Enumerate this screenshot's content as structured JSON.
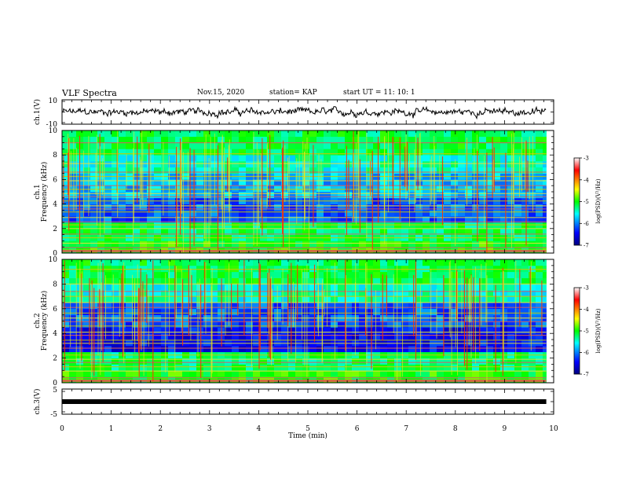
{
  "header": {
    "title": "VLF Spectra",
    "date": "Nov.15, 2020",
    "station": "station= KAP",
    "start": "start  UT =   11: 10: 1"
  },
  "chart_data": [
    {
      "type": "line",
      "name": "ch1-waveform",
      "ylabel": "ch.1(V)",
      "ylim": [
        -10,
        10
      ],
      "ytick_labels": [
        "10",
        "-10"
      ],
      "xlim": [
        0,
        10
      ]
    },
    {
      "type": "heatmap",
      "name": "ch1-spectrogram",
      "ylabel": "ch.1\nFrequency (kHz)",
      "ylabel_lines": [
        "ch.1",
        "Frequency (kHz)"
      ],
      "ylim": [
        0,
        10
      ],
      "ytick_labels": [
        "0",
        "2",
        "4",
        "6",
        "8",
        "10"
      ],
      "xlim": [
        0,
        10
      ],
      "data_end_min": 9.85,
      "horizontal_lines_khz": [
        0.25,
        0.45,
        0.8,
        1.25,
        1.55,
        2.0,
        2.3,
        2.55,
        2.9,
        3.35,
        3.6,
        3.85,
        4.25,
        4.6,
        4.85,
        5.2,
        5.5,
        5.9,
        6.25,
        6.6,
        7.3,
        8.1,
        9.0
      ],
      "colorbar": {
        "label": "log(PSD)(V²/Hz)",
        "range": [
          -7,
          -3
        ],
        "tick_labels": [
          "-3",
          "-4",
          "-5",
          "-6",
          "-7"
        ]
      }
    },
    {
      "type": "heatmap",
      "name": "ch2-spectrogram",
      "ylabel": "ch.2\nFrequency (kHz)",
      "ylabel_lines": [
        "ch.2",
        "Frequency (kHz)"
      ],
      "ylim": [
        0,
        10
      ],
      "ytick_labels": [
        "0",
        "2",
        "4",
        "6",
        "8",
        "10"
      ],
      "xlim": [
        0,
        10
      ],
      "data_end_min": 9.85,
      "horizontal_lines_khz": [
        0.2,
        0.4,
        0.95,
        1.3,
        1.65,
        1.9,
        2.25,
        2.8,
        3.2,
        3.45,
        3.85,
        4.1,
        4.6,
        4.95,
        5.25,
        5.65,
        6.1,
        6.5,
        7.0,
        7.4,
        8.0,
        9.2
      ],
      "colorbar": {
        "label": "log(PSD)(V²/Hz)",
        "range": [
          -7,
          -3
        ],
        "tick_labels": [
          "-3",
          "-4",
          "-5",
          "-6",
          "-7"
        ]
      }
    },
    {
      "type": "line",
      "name": "ch3-waveform",
      "ylabel": "ch.3(V)",
      "ylim": [
        -5,
        5
      ],
      "ytick_labels": [
        "5",
        "-5"
      ],
      "constant_value": 0,
      "xlim": [
        0,
        10
      ],
      "xlabel": "Time  (min)",
      "xtick_labels": [
        "0",
        "1",
        "2",
        "3",
        "4",
        "5",
        "6",
        "7",
        "8",
        "9",
        "10"
      ]
    }
  ]
}
